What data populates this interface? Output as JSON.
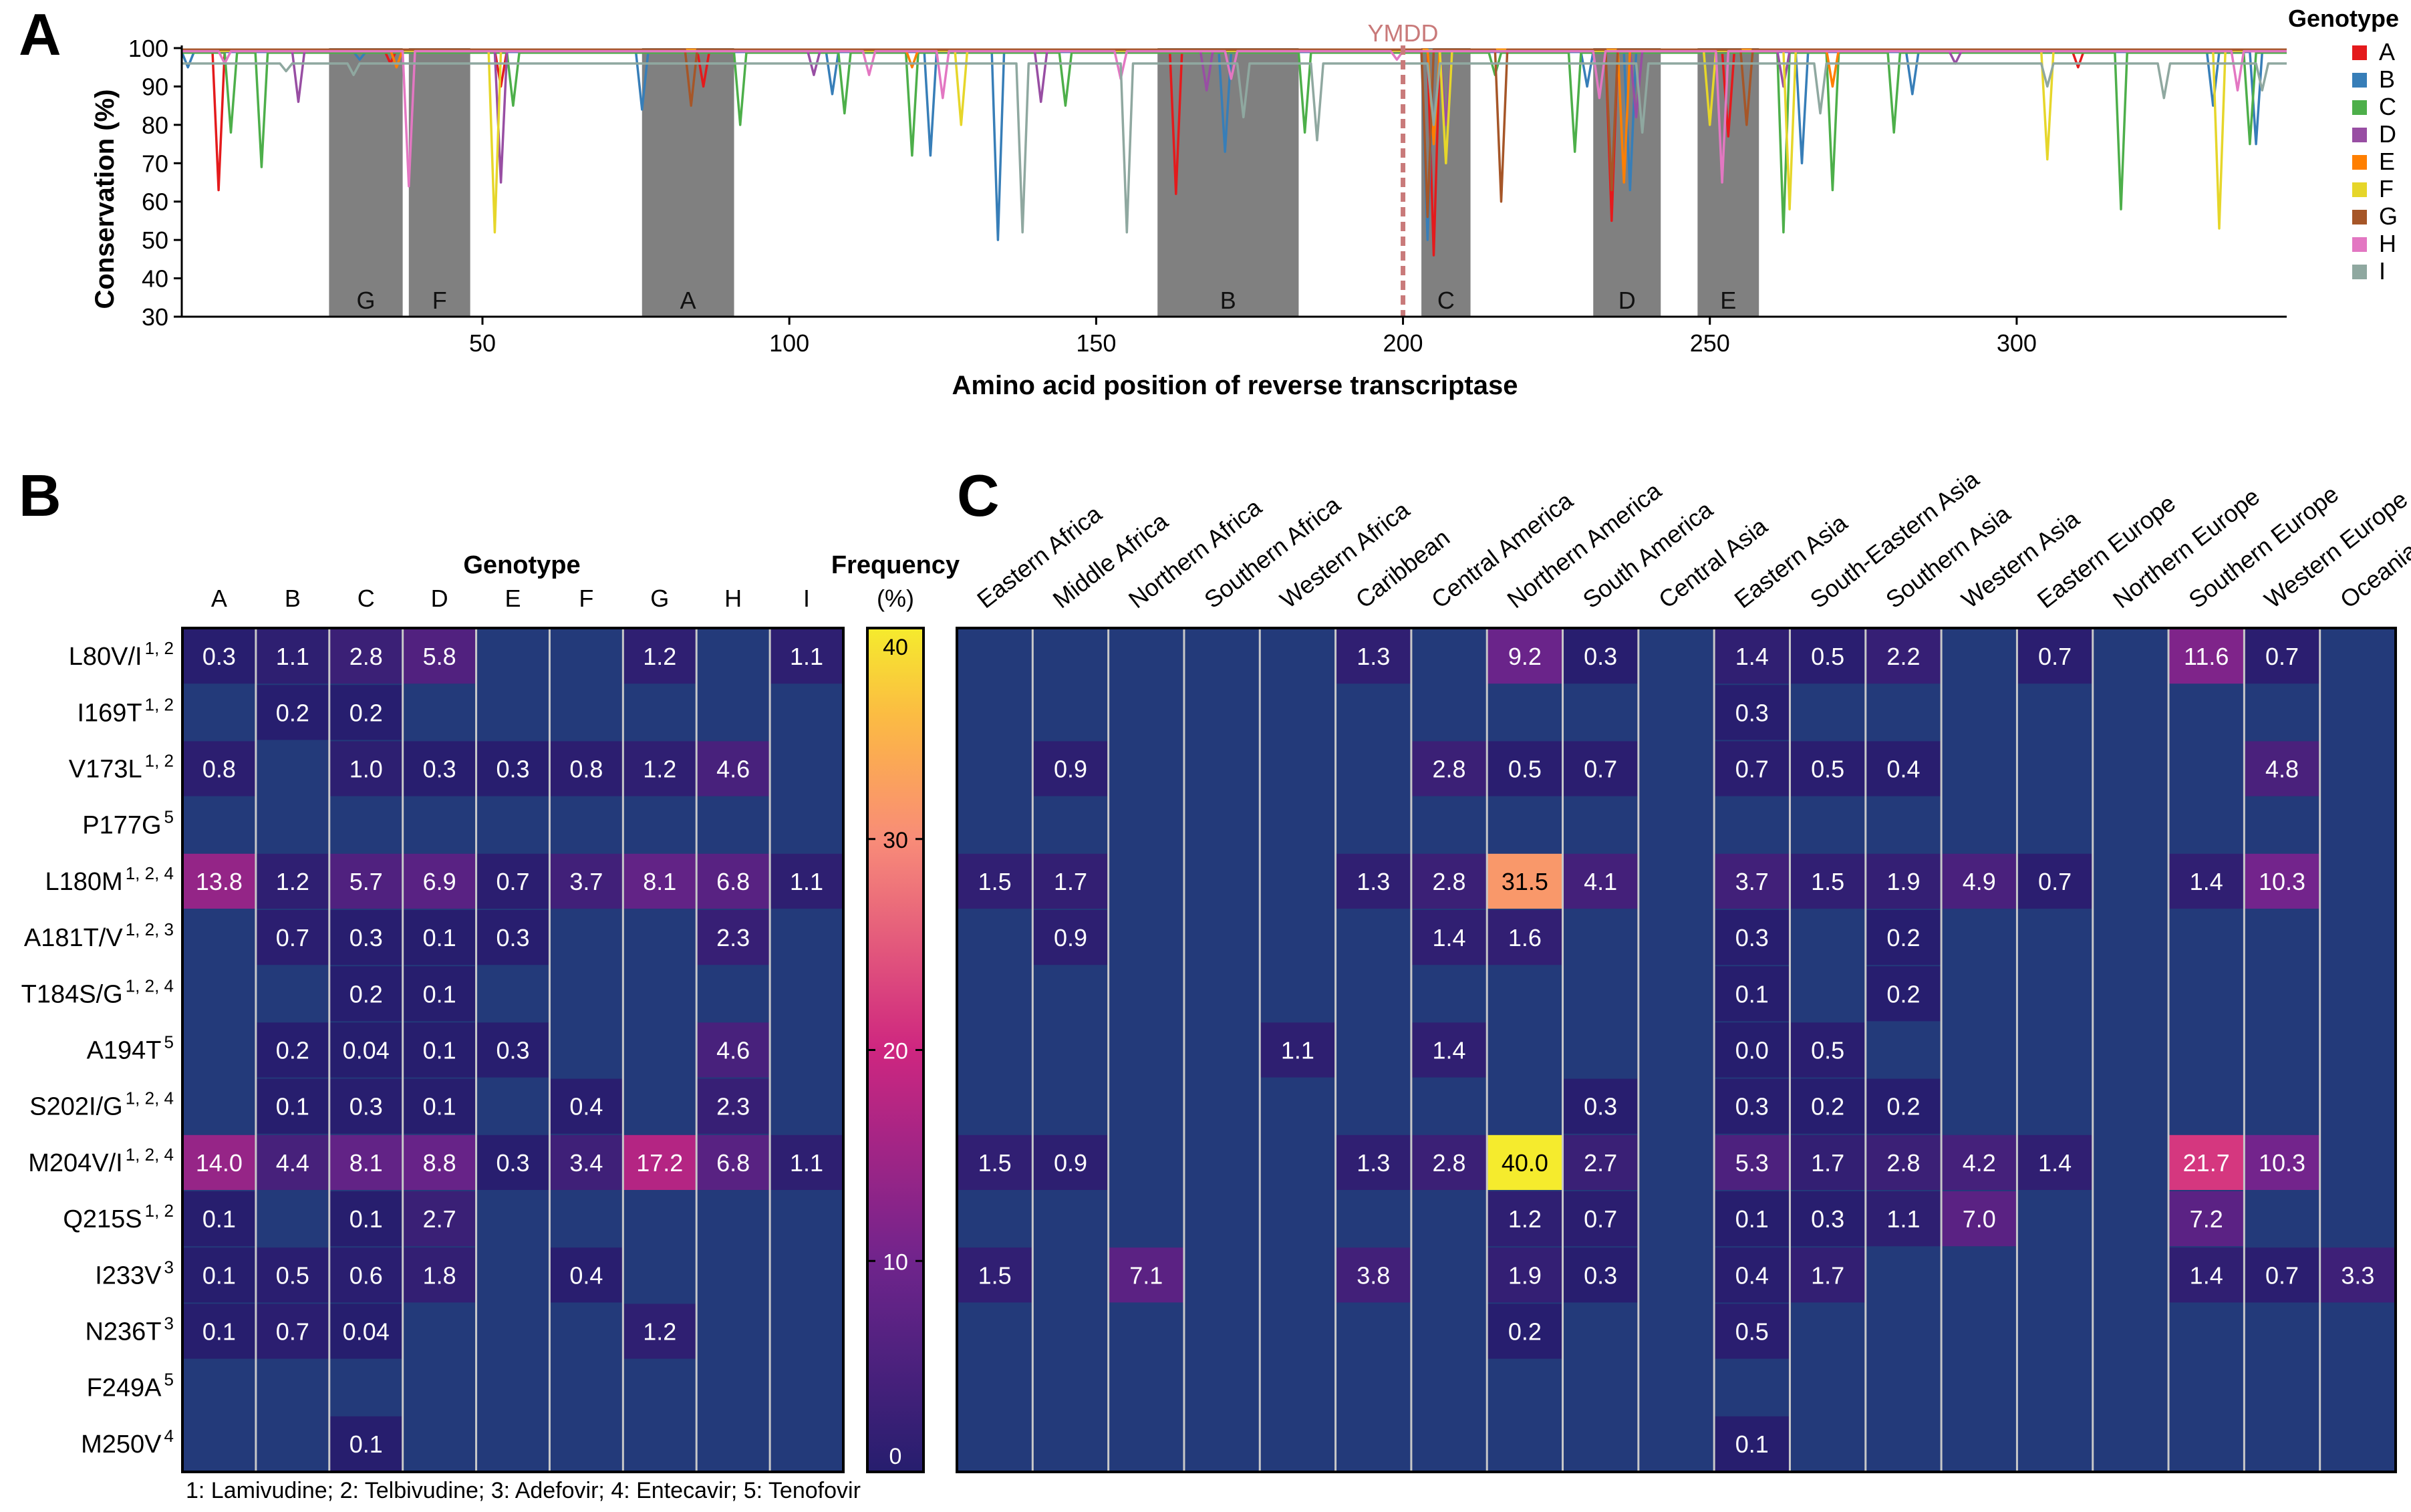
{
  "panels": {
    "a": "A",
    "b": "B",
    "c": "C"
  },
  "colors": {
    "A": "#e41a1c",
    "B": "#377eb8",
    "C": "#4daf4a",
    "D": "#984ea3",
    "E": "#ff7f00",
    "F": "#e6d62a",
    "G": "#a65628",
    "H": "#e377c2",
    "I": "#8fa8a0",
    "region_shade": "#808080",
    "ymdd": "#c97a7a",
    "heat_bg": "#233a7a"
  },
  "chart_data": [
    {
      "type": "line",
      "title": "",
      "xlabel": "Amino acid position of reverse transcriptase",
      "ylabel": "Conservation (%)",
      "xlim": [
        1,
        344
      ],
      "ylim": [
        30,
        100
      ],
      "xticks": [
        50,
        100,
        150,
        200,
        250,
        300
      ],
      "yticks": [
        30,
        40,
        50,
        60,
        70,
        80,
        90,
        100
      ],
      "legend_title": "Genotype",
      "legend": [
        "A",
        "B",
        "C",
        "D",
        "E",
        "F",
        "G",
        "H",
        "I"
      ],
      "ymdd_label": "YMDD",
      "ymdd_position": 200,
      "regions": [
        {
          "label": "G",
          "start": 25,
          "end": 37
        },
        {
          "label": "F",
          "start": 38,
          "end": 48
        },
        {
          "label": "A",
          "start": 76,
          "end": 91
        },
        {
          "label": "B",
          "start": 160,
          "end": 183
        },
        {
          "label": "C",
          "start": 203,
          "end": 211
        },
        {
          "label": "D",
          "start": 231,
          "end": 242
        },
        {
          "label": "E",
          "start": 248,
          "end": 258
        }
      ],
      "series": [
        {
          "name": "A",
          "baseline": 99.5,
          "dips": [
            [
              7,
              63
            ],
            [
              35,
              96
            ],
            [
              53,
              90
            ],
            [
              86,
              90
            ],
            [
              163,
              62
            ],
            [
              205,
              46
            ],
            [
              234,
              55
            ],
            [
              253,
              77
            ],
            [
              310,
              95
            ]
          ]
        },
        {
          "name": "B",
          "baseline": 99,
          "dips": [
            [
              2,
              95
            ],
            [
              30,
              97
            ],
            [
              76,
              84
            ],
            [
              107,
              88
            ],
            [
              123,
              72
            ],
            [
              134,
              50
            ],
            [
              171,
              73
            ],
            [
              204,
              50
            ],
            [
              230,
              90
            ],
            [
              237,
              63
            ],
            [
              265,
              70
            ],
            [
              283,
              88
            ],
            [
              332,
              85
            ],
            [
              339,
              75
            ]
          ]
        },
        {
          "name": "C",
          "baseline": 98.8,
          "dips": [
            [
              9,
              78
            ],
            [
              14,
              69
            ],
            [
              55,
              85
            ],
            [
              92,
              80
            ],
            [
              109,
              83
            ],
            [
              120,
              72
            ],
            [
              145,
              85
            ],
            [
              184,
              78
            ],
            [
              215,
              93
            ],
            [
              228,
              73
            ],
            [
              262,
              52
            ],
            [
              270,
              63
            ],
            [
              280,
              78
            ],
            [
              317,
              58
            ],
            [
              338,
              75
            ]
          ]
        },
        {
          "name": "D",
          "baseline": 99.2,
          "dips": [
            [
              20,
              86
            ],
            [
              53,
              65
            ],
            [
              104,
              93
            ],
            [
              141,
              86
            ],
            [
              168,
              89
            ],
            [
              207,
              80
            ],
            [
              238,
              82
            ],
            [
              262,
              90
            ],
            [
              290,
              96
            ]
          ]
        },
        {
          "name": "E",
          "baseline": 99.6,
          "dips": [
            [
              36,
              95
            ],
            [
              120,
              95
            ],
            [
              205,
              75
            ],
            [
              236,
              65
            ],
            [
              270,
              90
            ]
          ]
        },
        {
          "name": "F",
          "baseline": 99.3,
          "dips": [
            [
              52,
              52
            ],
            [
              128,
              80
            ],
            [
              207,
              70
            ],
            [
              250,
              80
            ],
            [
              263,
              58
            ],
            [
              305,
              71
            ],
            [
              333,
              53
            ]
          ]
        },
        {
          "name": "G",
          "baseline": 99.6,
          "dips": [
            [
              84,
              85
            ],
            [
              204,
              56
            ],
            [
              216,
              60
            ],
            [
              234,
              63
            ],
            [
              256,
              80
            ]
          ]
        },
        {
          "name": "H",
          "baseline": 99.2,
          "dips": [
            [
              8,
              96
            ],
            [
              38,
              64
            ],
            [
              113,
              93
            ],
            [
              125,
              87
            ],
            [
              154,
              92
            ],
            [
              172,
              92
            ],
            [
              199,
              97
            ],
            [
              232,
              87
            ],
            [
              252,
              65
            ],
            [
              336,
              89
            ]
          ]
        },
        {
          "name": "I",
          "baseline": 96,
          "dips": [
            [
              18,
              94
            ],
            [
              29,
              93
            ],
            [
              138,
              52
            ],
            [
              155,
              52
            ],
            [
              174,
              82
            ],
            [
              186,
              76
            ],
            [
              205,
              80
            ],
            [
              239,
              78
            ],
            [
              268,
              83
            ],
            [
              305,
              90
            ],
            [
              324,
              87
            ],
            [
              340,
              89
            ]
          ]
        }
      ]
    },
    {
      "type": "heatmap",
      "title": "Genotype",
      "columns": [
        "A",
        "B",
        "C",
        "D",
        "E",
        "F",
        "G",
        "H",
        "I"
      ],
      "rows": [
        "L80V/I",
        "I169T",
        "V173L",
        "P177G",
        "L180M",
        "A181T/V",
        "T184S/G",
        "A194T",
        "S202I/G",
        "M204V/I",
        "Q215S",
        "I233V",
        "N236T",
        "F249A",
        "M250V"
      ],
      "row_superscripts": [
        "1, 2",
        "1, 2",
        "1, 2",
        "5",
        "1, 2, 4",
        "1, 2, 3",
        "1, 2, 4",
        "5",
        "1, 2, 4",
        "1, 2, 4",
        "1, 2",
        "3",
        "3",
        "5",
        "4"
      ],
      "values": [
        [
          "0.3",
          "1.1",
          "2.8",
          "5.8",
          null,
          null,
          "1.2",
          null,
          "1.1"
        ],
        [
          null,
          "0.2",
          "0.2",
          null,
          null,
          null,
          null,
          null,
          null
        ],
        [
          "0.8",
          null,
          "1.0",
          "0.3",
          "0.3",
          "0.8",
          "1.2",
          "4.6",
          null
        ],
        [
          null,
          null,
          null,
          null,
          null,
          null,
          null,
          null,
          null
        ],
        [
          "13.8",
          "1.2",
          "5.7",
          "6.9",
          "0.7",
          "3.7",
          "8.1",
          "6.8",
          "1.1"
        ],
        [
          null,
          "0.7",
          "0.3",
          "0.1",
          "0.3",
          null,
          null,
          "2.3",
          null
        ],
        [
          null,
          null,
          "0.2",
          "0.1",
          null,
          null,
          null,
          null,
          null
        ],
        [
          null,
          "0.2",
          "0.04",
          "0.1",
          "0.3",
          null,
          null,
          "4.6",
          null
        ],
        [
          null,
          "0.1",
          "0.3",
          "0.1",
          null,
          "0.4",
          null,
          "2.3",
          null
        ],
        [
          "14.0",
          "4.4",
          "8.1",
          "8.8",
          "0.3",
          "3.4",
          "17.2",
          "6.8",
          "1.1"
        ],
        [
          "0.1",
          null,
          "0.1",
          "2.7",
          null,
          null,
          null,
          null,
          null
        ],
        [
          "0.1",
          "0.5",
          "0.6",
          "1.8",
          null,
          "0.4",
          null,
          null,
          null
        ],
        [
          "0.1",
          "0.7",
          "0.04",
          null,
          null,
          null,
          "1.2",
          null,
          null
        ],
        [
          null,
          null,
          null,
          null,
          null,
          null,
          null,
          null,
          null
        ],
        [
          null,
          null,
          "0.1",
          null,
          null,
          null,
          null,
          null,
          null
        ]
      ],
      "colorbar_label": [
        "Frequency",
        "(%)"
      ],
      "colorbar_range": [
        0,
        40
      ],
      "colorbar_ticks": [
        0,
        10,
        20,
        30,
        40
      ],
      "footnote": "1: Lamivudine; 2: Telbivudine; 3: Adefovir; 4: Entecavir; 5: Tenofovir"
    },
    {
      "type": "heatmap",
      "title": "",
      "columns": [
        "Eastern Africa",
        "Middle Africa",
        "Northern Africa",
        "Southern Africa",
        "Western Africa",
        "Caribbean",
        "Central America",
        "Northern America",
        "South America",
        "Central Asia",
        "Eastern Asia",
        "South-Eastern Asia",
        "Southern Asia",
        "Western Asia",
        "Eastern Europe",
        "Northern Europe",
        "Southern Europe",
        "Western Europe",
        "Oceania"
      ],
      "rows": [
        "L80V/I",
        "I169T",
        "V173L",
        "P177G",
        "L180M",
        "A181T/V",
        "T184S/G",
        "A194T",
        "S202I/G",
        "M204V/I",
        "Q215S",
        "I233V",
        "N236T",
        "F249A",
        "M250V"
      ],
      "values": [
        [
          null,
          null,
          null,
          null,
          null,
          "1.3",
          null,
          "9.2",
          "0.3",
          null,
          "1.4",
          "0.5",
          "2.2",
          null,
          "0.7",
          null,
          "11.6",
          "0.7",
          null
        ],
        [
          null,
          null,
          null,
          null,
          null,
          null,
          null,
          null,
          null,
          null,
          "0.3",
          null,
          null,
          null,
          null,
          null,
          null,
          null,
          null
        ],
        [
          null,
          "0.9",
          null,
          null,
          null,
          null,
          "2.8",
          "0.5",
          "0.7",
          null,
          "0.7",
          "0.5",
          "0.4",
          null,
          null,
          null,
          null,
          "4.8",
          null
        ],
        [
          null,
          null,
          null,
          null,
          null,
          null,
          null,
          null,
          null,
          null,
          null,
          null,
          null,
          null,
          null,
          null,
          null,
          null,
          null
        ],
        [
          "1.5",
          "1.7",
          null,
          null,
          null,
          "1.3",
          "2.8",
          "31.5",
          "4.1",
          null,
          "3.7",
          "1.5",
          "1.9",
          "4.9",
          "0.7",
          null,
          "1.4",
          "10.3",
          null
        ],
        [
          null,
          "0.9",
          null,
          null,
          null,
          null,
          "1.4",
          "1.6",
          null,
          null,
          "0.3",
          null,
          "0.2",
          null,
          null,
          null,
          null,
          null,
          null
        ],
        [
          null,
          null,
          null,
          null,
          null,
          null,
          null,
          null,
          null,
          null,
          "0.1",
          null,
          "0.2",
          null,
          null,
          null,
          null,
          null,
          null
        ],
        [
          null,
          null,
          null,
          null,
          "1.1",
          null,
          "1.4",
          null,
          null,
          null,
          "0.0",
          "0.5",
          null,
          null,
          null,
          null,
          null,
          null,
          null
        ],
        [
          null,
          null,
          null,
          null,
          null,
          null,
          null,
          null,
          "0.3",
          null,
          "0.3",
          "0.2",
          "0.2",
          null,
          null,
          null,
          null,
          null,
          null
        ],
        [
          "1.5",
          "0.9",
          null,
          null,
          null,
          "1.3",
          "2.8",
          "40.0",
          "2.7",
          null,
          "5.3",
          "1.7",
          "2.8",
          "4.2",
          "1.4",
          null,
          "21.7",
          "10.3",
          null
        ],
        [
          null,
          null,
          null,
          null,
          null,
          null,
          null,
          "1.2",
          "0.7",
          null,
          "0.1",
          "0.3",
          "1.1",
          "7.0",
          null,
          null,
          "7.2",
          null,
          null
        ],
        [
          "1.5",
          null,
          "7.1",
          null,
          null,
          "3.8",
          null,
          "1.9",
          "0.3",
          null,
          "0.4",
          "1.7",
          null,
          null,
          null,
          null,
          "1.4",
          "0.7",
          "3.3"
        ],
        [
          null,
          null,
          null,
          null,
          null,
          null,
          null,
          "0.2",
          null,
          null,
          "0.5",
          null,
          null,
          null,
          null,
          null,
          null,
          null,
          null
        ],
        [
          null,
          null,
          null,
          null,
          null,
          null,
          null,
          null,
          null,
          null,
          null,
          null,
          null,
          null,
          null,
          null,
          null,
          null,
          null
        ],
        [
          null,
          null,
          null,
          null,
          null,
          null,
          null,
          null,
          null,
          null,
          "0.1",
          null,
          null,
          null,
          null,
          null,
          null,
          null,
          null
        ]
      ]
    }
  ]
}
